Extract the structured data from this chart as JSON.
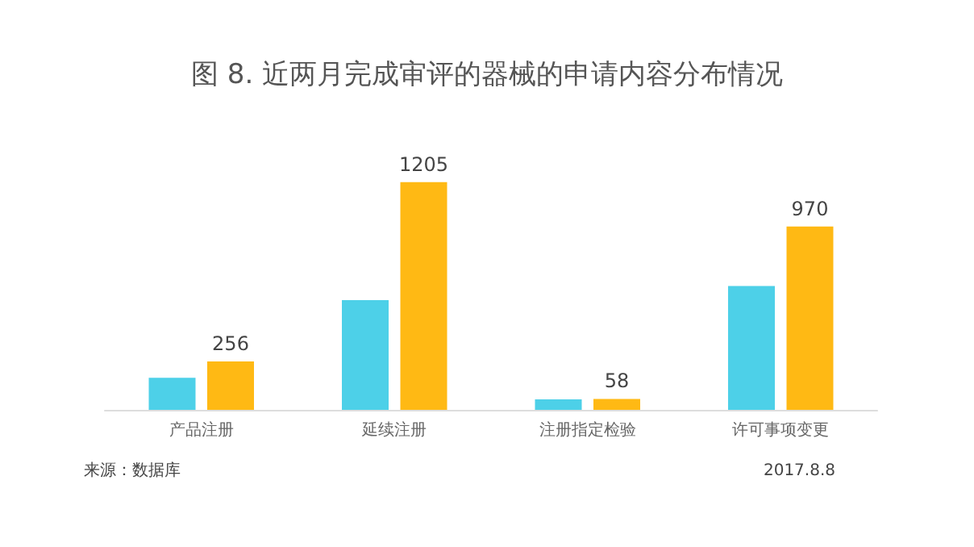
{
  "chart_data": {
    "type": "bar",
    "title": "图 8. 近两月完成审评的器械的申请内容分布情况",
    "categories": [
      "产品注册",
      "延续注册",
      "注册指定检验",
      "许可事项变更"
    ],
    "series": [
      {
        "color": "#4dd0e8",
        "values": [
          170,
          580,
          55,
          655
        ]
      },
      {
        "color": "#ffb914",
        "values": [
          256,
          1205,
          58,
          970
        ],
        "value_labels": [
          "256",
          "1205",
          "58",
          "970"
        ]
      }
    ],
    "annotations": [
      "来源：数据库",
      "2017.8.8"
    ]
  }
}
